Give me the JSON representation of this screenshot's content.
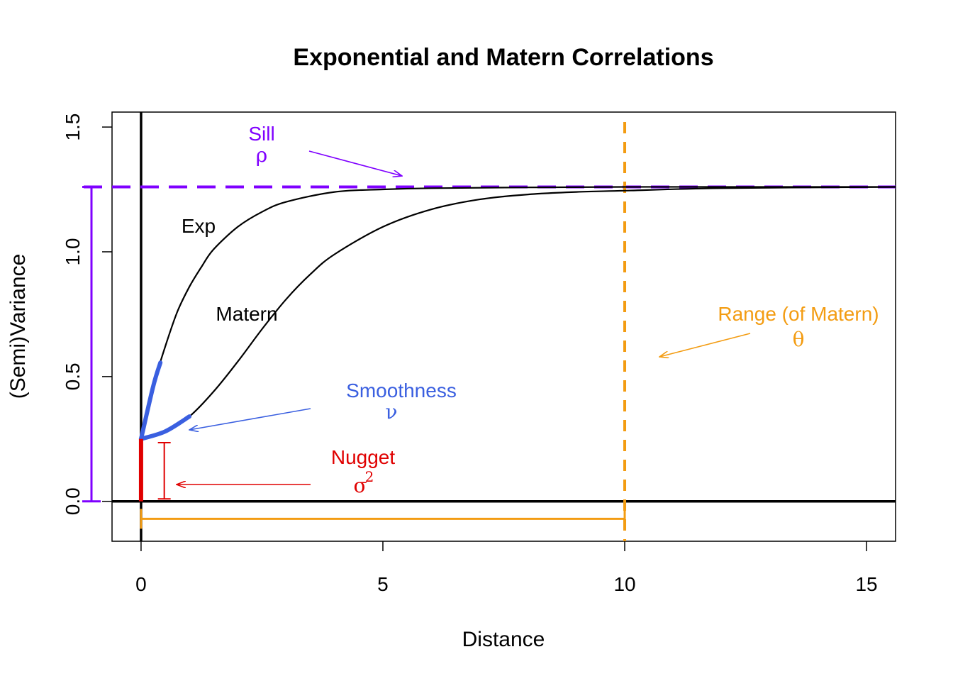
{
  "chart_data": {
    "type": "line",
    "title": "Exponential and Matern Correlations",
    "xlabel": "Distance",
    "ylabel": "(Semi)Variance",
    "xlim": [
      -0.6,
      15.6
    ],
    "ylim": [
      -0.16,
      1.56
    ],
    "xticks": [
      "0",
      "5",
      "10",
      "15"
    ],
    "yticks": [
      "0.0",
      "0.5",
      "1.0",
      "1.5"
    ],
    "nugget": 0.25,
    "sill": 1.26,
    "range": 10,
    "series": [
      {
        "name": "Exp",
        "color": "#000000",
        "x": [
          0,
          0.25,
          0.5,
          0.75,
          1,
          1.25,
          1.5,
          2,
          2.5,
          3,
          4,
          5,
          6,
          8,
          10,
          12,
          15.6
        ],
        "y": [
          0.25,
          0.46,
          0.62,
          0.76,
          0.86,
          0.94,
          1.01,
          1.1,
          1.16,
          1.2,
          1.24,
          1.25,
          1.255,
          1.258,
          1.26,
          1.26,
          1.26
        ]
      },
      {
        "name": "Matern",
        "color": "#000000",
        "x": [
          0,
          0.5,
          1,
          1.5,
          2,
          2.5,
          3,
          3.5,
          4,
          5,
          6,
          7,
          8,
          9,
          10,
          12,
          15.6
        ],
        "y": [
          0.25,
          0.28,
          0.34,
          0.44,
          0.56,
          0.69,
          0.81,
          0.91,
          0.99,
          1.1,
          1.17,
          1.21,
          1.23,
          1.24,
          1.245,
          1.255,
          1.26
        ]
      }
    ],
    "annotations": {
      "exp_label": "Exp",
      "matern_label": "Matern",
      "sill_label": "Sill",
      "sill_symbol": "ρ",
      "range_label": "Range (of Matern)",
      "range_symbol": "θ",
      "smoothness_label": "Smoothness",
      "smoothness_symbol": "ν",
      "nugget_label": "Nugget",
      "nugget_symbol": "σ",
      "nugget_superscript": "2"
    },
    "colors": {
      "sill": "#7f00ff",
      "range": "#f39c12",
      "smoothness": "#3a5fe0",
      "nugget": "#e00000",
      "curve": "#000000"
    }
  }
}
